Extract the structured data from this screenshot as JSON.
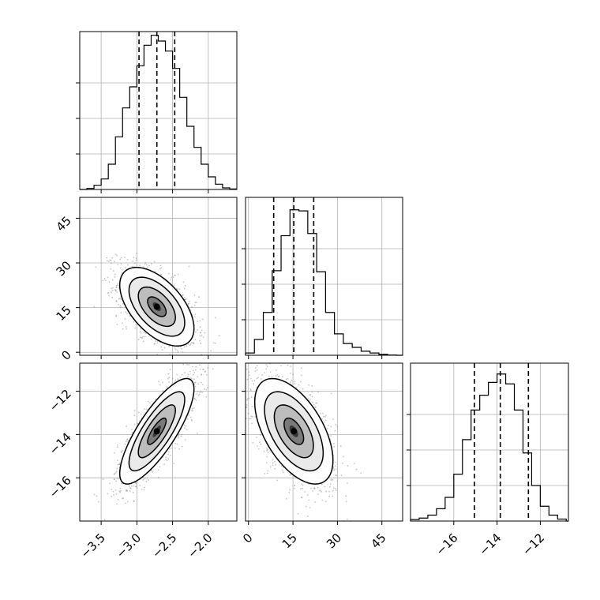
{
  "chart_data": {
    "type": "corner",
    "grid": true,
    "parameters": [
      {
        "ticks": [
          -3.5,
          -3.0,
          -2.5,
          -2.0
        ],
        "tick_labels": [
          "−3.5",
          "−3.0",
          "−2.5",
          "−2.0"
        ],
        "range": [
          -3.8,
          -1.6
        ]
      },
      {
        "ticks": [
          0,
          15,
          30,
          45
        ],
        "tick_labels": [
          "0",
          "15",
          "30",
          "45"
        ],
        "range": [
          -1,
          52
        ]
      },
      {
        "ticks": [
          -16,
          -14,
          -12
        ],
        "tick_labels": [
          "−16",
          "−14",
          "−12"
        ],
        "range": [
          -18,
          -10.7
        ]
      }
    ],
    "marginals": [
      {
        "param": 0,
        "bins": [
          -3.8,
          -3.7,
          -3.6,
          -3.5,
          -3.4,
          -3.3,
          -3.2,
          -3.1,
          -3.0,
          -2.9,
          -2.8,
          -2.7,
          -2.6,
          -2.5,
          -2.4,
          -2.3,
          -2.2,
          -2.1,
          -2.0,
          -1.9,
          -1.8,
          -1.7,
          -1.6
        ],
        "counts": [
          0,
          2,
          8,
          20,
          48,
          100,
          155,
          195,
          235,
          274,
          293,
          282,
          263,
          230,
          175,
          120,
          80,
          48,
          24,
          10,
          3,
          1
        ],
        "ymax": 300,
        "quantiles": [
          -2.97,
          -2.72,
          -2.47
        ]
      },
      {
        "param": 1,
        "bins": [
          -1,
          2,
          5,
          8,
          11,
          14,
          17,
          20,
          23,
          26,
          29,
          32,
          35,
          38,
          41,
          44,
          47,
          50,
          52
        ],
        "counts": [
          10,
          70,
          190,
          375,
          530,
          645,
          640,
          540,
          370,
          190,
          95,
          52,
          35,
          18,
          10,
          4,
          1,
          0
        ],
        "ymax": 700,
        "quantiles": [
          8.5,
          15.3,
          22.0
        ]
      },
      {
        "param": 2,
        "bins": [
          -18,
          -17.6,
          -17.2,
          -16.8,
          -16.4,
          -16.0,
          -15.6,
          -15.2,
          -14.8,
          -14.4,
          -14.0,
          -13.6,
          -13.2,
          -12.8,
          -12.4,
          -12.0,
          -11.6,
          -11.2,
          -10.8,
          -10.7
        ],
        "counts": [
          3,
          6,
          12,
          25,
          48,
          95,
          165,
          225,
          255,
          281,
          298,
          278,
          225,
          138,
          72,
          30,
          12,
          4,
          0
        ],
        "ymax": 320,
        "quantiles": [
          -15.05,
          -13.85,
          -12.55
        ]
      }
    ],
    "joints": [
      {
        "x_param": 0,
        "y_param": 1,
        "mean": [
          -2.72,
          15.3
        ],
        "std": [
          0.26,
          6.6
        ],
        "rho": -0.55,
        "contour_levels": [
          0.5,
          1.0,
          1.5,
          2.0
        ]
      },
      {
        "x_param": 0,
        "y_param": 2,
        "mean": [
          -2.72,
          -13.85
        ],
        "std": [
          0.26,
          1.22
        ],
        "rho": 0.8,
        "contour_levels": [
          0.5,
          1.0,
          1.5,
          2.0
        ]
      },
      {
        "x_param": 1,
        "y_param": 2,
        "mean": [
          15.3,
          -13.85
        ],
        "std": [
          6.6,
          1.22
        ],
        "rho": -0.55,
        "contour_levels": [
          0.5,
          1.0,
          1.5,
          2.0
        ]
      }
    ],
    "colors": {
      "ink": "#000000",
      "grid": "#b0b0b0",
      "scatter": "#7f7f7f"
    }
  }
}
